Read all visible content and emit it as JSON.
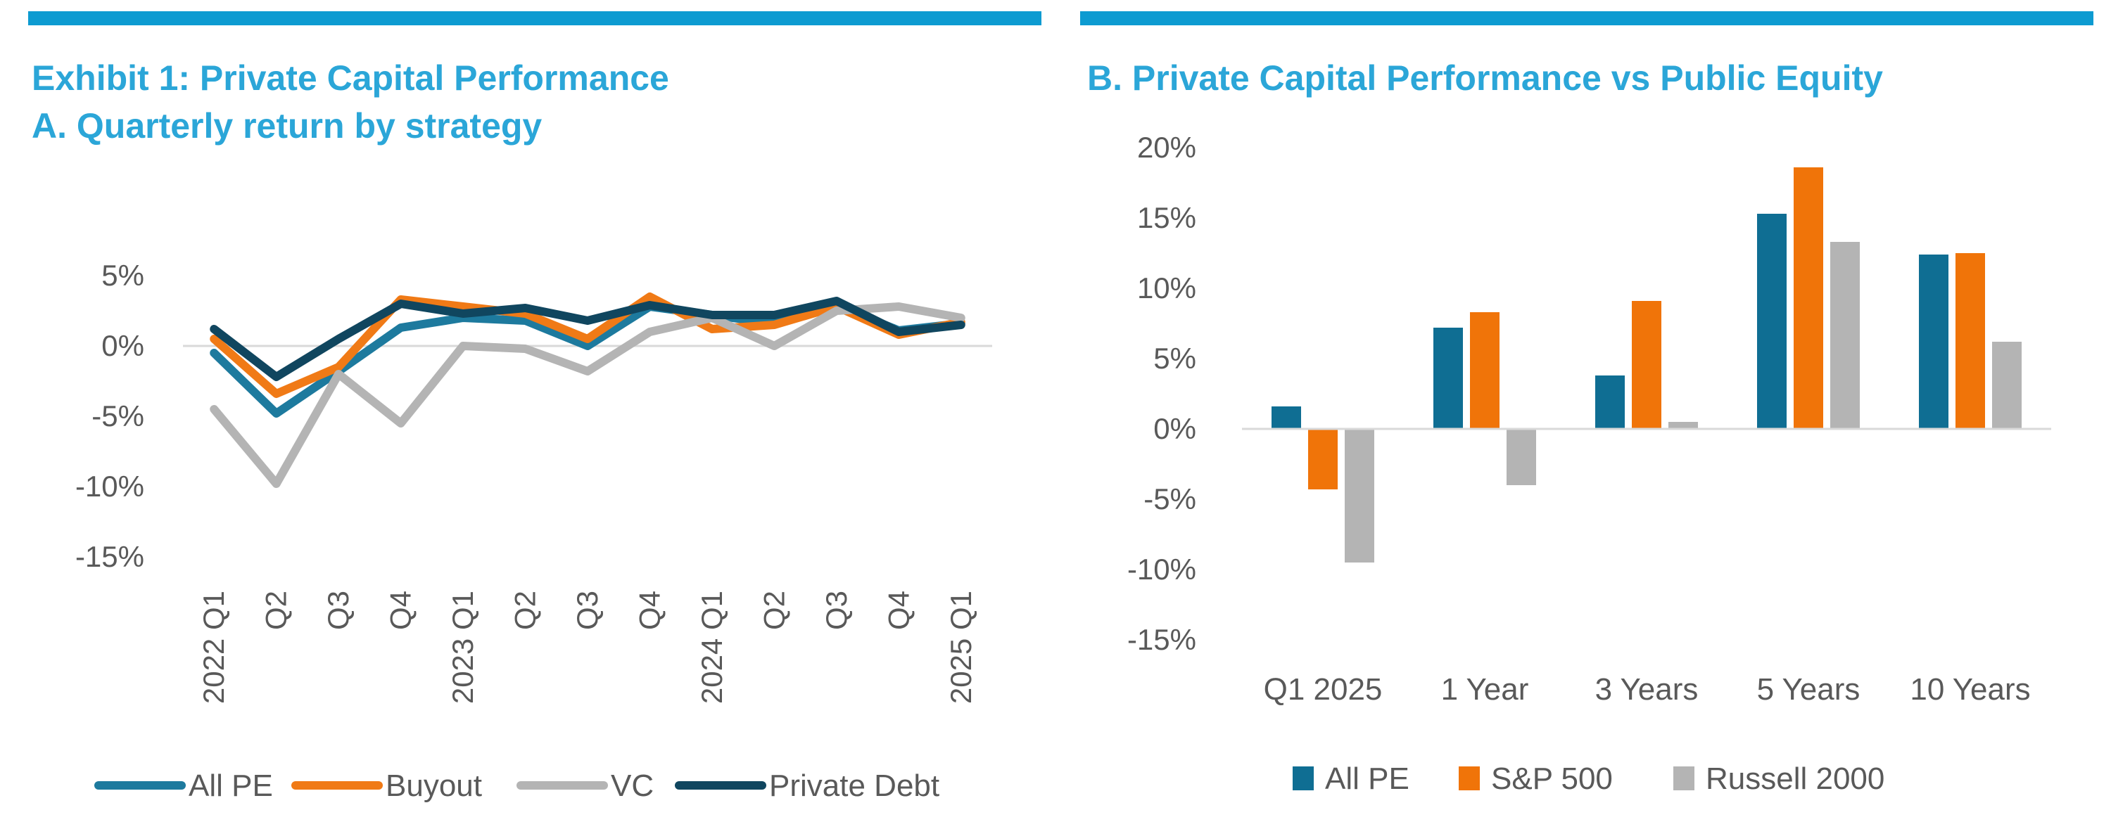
{
  "panel_a": {
    "title_line1": "Exhibit 1: Private Capital Performance",
    "title_line2": "A.  Quarterly return by strategy"
  },
  "panel_b": {
    "title": "B. Private Capital Performance vs Public Equity"
  },
  "chart_data": [
    {
      "type": "line",
      "title": "A.  Quarterly return by strategy",
      "categories": [
        "2022 Q1",
        "Q2",
        "Q3",
        "Q4",
        "2023 Q1",
        "Q2",
        "Q3",
        "Q4",
        "2024 Q1",
        "Q2",
        "Q3",
        "Q4",
        "2025 Q1"
      ],
      "y_ticks": [
        "5%",
        "0%",
        "-5%",
        "-10%",
        "-15%"
      ],
      "ylim": [
        -15,
        5
      ],
      "grid": false,
      "legend_position": "bottom",
      "series": [
        {
          "name": "All PE",
          "color": "#1d7a9e",
          "values": [
            -0.5,
            -4.8,
            -1.8,
            1.3,
            2.0,
            1.8,
            0.0,
            2.8,
            2.2,
            1.6,
            2.9,
            1.1,
            1.6
          ]
        },
        {
          "name": "Buyout",
          "color": "#f07a16",
          "values": [
            0.5,
            -3.4,
            -1.5,
            3.3,
            2.8,
            2.3,
            0.5,
            3.5,
            1.2,
            1.5,
            2.8,
            0.8,
            1.7
          ]
        },
        {
          "name": "VC",
          "color": "#b4b4b4",
          "values": [
            -4.5,
            -9.8,
            -2.0,
            -5.5,
            0.0,
            -0.2,
            -1.8,
            1.0,
            2.0,
            0.0,
            2.5,
            2.8,
            2.0
          ]
        },
        {
          "name": "Private Debt",
          "color": "#10465f",
          "values": [
            1.2,
            -2.2,
            0.5,
            3.0,
            2.3,
            2.7,
            1.8,
            2.9,
            2.2,
            2.2,
            3.2,
            1.0,
            1.5
          ]
        }
      ]
    },
    {
      "type": "bar",
      "title": "B. Private Capital Performance vs Public Equity",
      "categories": [
        "Q1 2025",
        "1 Year",
        "3 Years",
        "5 Years",
        "10 Years"
      ],
      "y_ticks": [
        "20%",
        "15%",
        "10%",
        "5%",
        "0%",
        "-5%",
        "-10%",
        "-15%"
      ],
      "ylim": [
        -15,
        20
      ],
      "grid": false,
      "legend_position": "bottom",
      "series": [
        {
          "name": "All PE",
          "color": "#0f6e93",
          "values": [
            1.6,
            7.2,
            3.8,
            15.3,
            12.4
          ]
        },
        {
          "name": "S&P 500",
          "color": "#f07409",
          "values": [
            -4.3,
            8.3,
            9.1,
            18.6,
            12.5
          ]
        },
        {
          "name": "Russell 2000",
          "color": "#b4b4b4",
          "values": [
            -9.5,
            -4.0,
            0.5,
            13.3,
            6.2
          ]
        }
      ]
    }
  ]
}
